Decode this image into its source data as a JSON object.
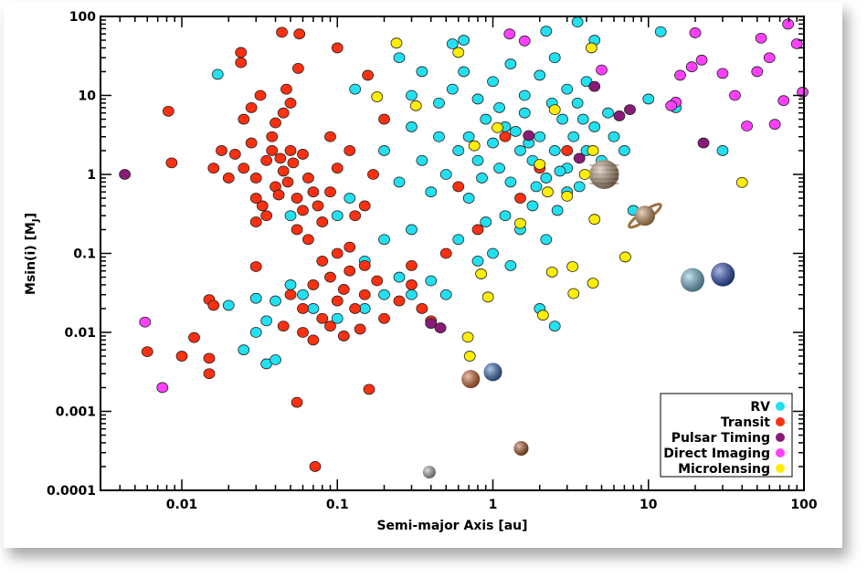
{
  "chart_data": {
    "type": "scatter",
    "title": "",
    "xlabel": "Semi-major Axis [au]",
    "ylabel": "Msin(i) [M",
    "ylabel_sub": "J",
    "ylabel_end": "]",
    "x_scale": "log",
    "y_scale": "log",
    "xlim": [
      0.003,
      100
    ],
    "ylim": [
      0.0001,
      100
    ],
    "x_ticks": [
      {
        "v": 0.01,
        "label": "0.01"
      },
      {
        "v": 0.1,
        "label": "0.1"
      },
      {
        "v": 1,
        "label": "1"
      },
      {
        "v": 10,
        "label": "10"
      },
      {
        "v": 100,
        "label": "100"
      }
    ],
    "y_ticks": [
      {
        "v": 0.0001,
        "label": "0.0001"
      },
      {
        "v": 0.001,
        "label": "0.001"
      },
      {
        "v": 0.01,
        "label": "0.01"
      },
      {
        "v": 0.1,
        "label": "0.1"
      },
      {
        "v": 1,
        "label": "1"
      },
      {
        "v": 10,
        "label": "10"
      },
      {
        "v": 100,
        "label": "100"
      }
    ],
    "grid": false,
    "legend_position": "bottom-right",
    "series": [
      {
        "name": "RV",
        "color": "#22e0f0",
        "points": [
          [
            0.5,
            1
          ],
          [
            0.6,
            2
          ],
          [
            0.7,
            3
          ],
          [
            0.8,
            1.5
          ],
          [
            0.9,
            5
          ],
          [
            1,
            2.5
          ],
          [
            1.1,
            1.2
          ],
          [
            1.2,
            4
          ],
          [
            1.3,
            0.8
          ],
          [
            1.5,
            2
          ],
          [
            1.6,
            6
          ],
          [
            1.8,
            1.5
          ],
          [
            2,
            3
          ],
          [
            2.2,
            0.9
          ],
          [
            2.5,
            2
          ],
          [
            2.8,
            5
          ],
          [
            3,
            1.2
          ],
          [
            3.3,
            3
          ],
          [
            3.6,
            0.7
          ],
          [
            4,
            2
          ],
          [
            4.5,
            4
          ],
          [
            5,
            1.5
          ],
          [
            5.5,
            6
          ],
          [
            6,
            3
          ],
          [
            7,
            2
          ],
          [
            0.4,
            0.6
          ],
          [
            0.35,
            1.5
          ],
          [
            0.3,
            4
          ],
          [
            0.25,
            0.8
          ],
          [
            0.2,
            2
          ],
          [
            0.45,
            8
          ],
          [
            0.55,
            12
          ],
          [
            0.65,
            20
          ],
          [
            0.8,
            9
          ],
          [
            1,
            15
          ],
          [
            1.3,
            25
          ],
          [
            1.6,
            10
          ],
          [
            2,
            18
          ],
          [
            2.5,
            30
          ],
          [
            3,
            12
          ],
          [
            3.5,
            8
          ],
          [
            4,
            15
          ],
          [
            4.5,
            50
          ],
          [
            2.2,
            65
          ],
          [
            3.5,
            85
          ],
          [
            0.55,
            45
          ],
          [
            0.65,
            50
          ],
          [
            1.2,
            0.3
          ],
          [
            1.5,
            0.2
          ],
          [
            1.8,
            0.4
          ],
          [
            2.2,
            0.15
          ],
          [
            2.6,
            0.35
          ],
          [
            3,
            0.6
          ],
          [
            0.7,
            0.5
          ],
          [
            0.9,
            0.25
          ],
          [
            0.6,
            0.15
          ],
          [
            1,
            0.1
          ],
          [
            0.8,
            0.08
          ],
          [
            1.3,
            0.07
          ],
          [
            2.5,
            0.012
          ],
          [
            2,
            0.02
          ],
          [
            0.3,
            0.2
          ],
          [
            0.2,
            0.15
          ],
          [
            0.15,
            0.08
          ],
          [
            0.25,
            0.05
          ],
          [
            0.3,
            0.03
          ],
          [
            0.4,
            0.045
          ],
          [
            0.5,
            0.03
          ],
          [
            0.2,
            0.03
          ],
          [
            0.15,
            0.02
          ],
          [
            0.1,
            0.015
          ],
          [
            0.07,
            0.02
          ],
          [
            0.06,
            0.03
          ],
          [
            0.05,
            0.04
          ],
          [
            0.04,
            0.025
          ],
          [
            0.035,
            0.014
          ],
          [
            0.03,
            0.01
          ],
          [
            0.025,
            0.006
          ],
          [
            0.035,
            0.004
          ],
          [
            0.04,
            0.0045
          ],
          [
            0.03,
            0.027
          ],
          [
            0.02,
            0.022
          ],
          [
            0.1,
            0.3
          ],
          [
            0.12,
            0.5
          ],
          [
            0.05,
            0.3
          ],
          [
            0.017,
            18.5
          ],
          [
            8,
            0.35
          ],
          [
            10,
            9
          ],
          [
            15,
            7
          ],
          [
            12,
            64
          ],
          [
            30,
            2
          ],
          [
            0.13,
            12
          ],
          [
            0.25,
            30
          ],
          [
            0.35,
            20
          ],
          [
            0.3,
            10
          ],
          [
            0.45,
            3
          ],
          [
            1.1,
            7
          ],
          [
            1.4,
            3.5
          ],
          [
            1.7,
            2.5
          ],
          [
            2.4,
            8
          ],
          [
            3.8,
            5
          ],
          [
            0.85,
            0.9
          ],
          [
            1.9,
            0.7
          ],
          [
            2.7,
            1.1
          ]
        ]
      },
      {
        "name": "Transit",
        "color": "#ff3010",
        "points": [
          [
            0.025,
            1.2
          ],
          [
            0.03,
            0.9
          ],
          [
            0.035,
            1.5
          ],
          [
            0.04,
            0.7
          ],
          [
            0.045,
            1.1
          ],
          [
            0.05,
            2
          ],
          [
            0.055,
            0.5
          ],
          [
            0.028,
            2.5
          ],
          [
            0.033,
            0.4
          ],
          [
            0.038,
            3
          ],
          [
            0.042,
            0.55
          ],
          [
            0.048,
            0.8
          ],
          [
            0.052,
            1.4
          ],
          [
            0.06,
            0.35
          ],
          [
            0.065,
            0.9
          ],
          [
            0.07,
            0.6
          ],
          [
            0.022,
            1.8
          ],
          [
            0.02,
            0.9
          ],
          [
            0.018,
            2
          ],
          [
            0.016,
            1.2
          ],
          [
            0.03,
            0.5
          ],
          [
            0.04,
            4.5
          ],
          [
            0.045,
            6
          ],
          [
            0.05,
            8
          ],
          [
            0.047,
            12
          ],
          [
            0.03,
            0.25
          ],
          [
            0.035,
            0.3
          ],
          [
            0.06,
            1.8
          ],
          [
            0.075,
            0.4
          ],
          [
            0.08,
            0.25
          ],
          [
            0.09,
            0.6
          ],
          [
            0.1,
            1.2
          ],
          [
            0.12,
            2
          ],
          [
            0.13,
            0.3
          ],
          [
            0.15,
            0.4
          ],
          [
            0.2,
            5
          ],
          [
            0.17,
            1
          ],
          [
            0.025,
            5
          ],
          [
            0.028,
            7
          ],
          [
            0.032,
            10
          ],
          [
            0.055,
            0.2
          ],
          [
            0.065,
            0.15
          ],
          [
            0.09,
            3
          ],
          [
            0.038,
            2
          ],
          [
            0.043,
            1.6
          ],
          [
            0.05,
            0.03
          ],
          [
            0.06,
            0.02
          ],
          [
            0.07,
            0.04
          ],
          [
            0.08,
            0.015
          ],
          [
            0.09,
            0.05
          ],
          [
            0.1,
            0.025
          ],
          [
            0.11,
            0.035
          ],
          [
            0.12,
            0.06
          ],
          [
            0.13,
            0.02
          ],
          [
            0.15,
            0.03
          ],
          [
            0.18,
            0.045
          ],
          [
            0.2,
            0.015
          ],
          [
            0.25,
            0.025
          ],
          [
            0.3,
            0.04
          ],
          [
            0.35,
            0.02
          ],
          [
            0.4,
            0.014
          ],
          [
            0.1,
            0.1
          ],
          [
            0.12,
            0.12
          ],
          [
            0.08,
            0.08
          ],
          [
            0.15,
            0.07
          ],
          [
            0.045,
            0.012
          ],
          [
            0.06,
            0.01
          ],
          [
            0.07,
            0.008
          ],
          [
            0.09,
            0.012
          ],
          [
            0.11,
            0.009
          ],
          [
            0.14,
            0.011
          ],
          [
            0.3,
            0.07
          ],
          [
            0.5,
            0.1
          ],
          [
            0.8,
            0.2
          ],
          [
            1.5,
            0.5
          ],
          [
            2,
            1.2
          ],
          [
            3,
            2
          ],
          [
            1.2,
            3
          ],
          [
            0.6,
            0.7
          ],
          [
            0.0082,
            6.3
          ],
          [
            0.0086,
            1.4
          ],
          [
            0.006,
            0.0057
          ],
          [
            0.01,
            0.005
          ],
          [
            0.012,
            0.0086
          ],
          [
            0.015,
            0.0047
          ],
          [
            0.015,
            0.003
          ],
          [
            0.015,
            0.026
          ],
          [
            0.016,
            0.022
          ],
          [
            0.024,
            35
          ],
          [
            0.024,
            26
          ],
          [
            0.044,
            63
          ],
          [
            0.057,
            60
          ],
          [
            0.1,
            40
          ],
          [
            0.055,
            0.0013
          ],
          [
            0.16,
            0.0019
          ],
          [
            0.072,
            0.0002
          ],
          [
            0.157,
            18
          ],
          [
            0.056,
            22
          ],
          [
            0.03,
            0.068
          ]
        ]
      },
      {
        "name": "Pulsar Timing",
        "color": "#8a1a78",
        "points": [
          [
            0.0043,
            1
          ],
          [
            0.46,
            0.0114
          ],
          [
            0.4,
            0.013
          ],
          [
            22.6,
            2.5
          ],
          [
            1.7,
            3.1
          ],
          [
            7.6,
            6.6
          ],
          [
            6.5,
            5.5
          ],
          [
            4.5,
            13
          ],
          [
            3.6,
            1.6
          ]
        ]
      },
      {
        "name": "Direct Imaging",
        "color": "#ff40ff",
        "points": [
          [
            0.0058,
            0.0135
          ],
          [
            0.0075,
            0.002
          ],
          [
            79,
            80
          ],
          [
            53,
            53
          ],
          [
            50,
            20
          ],
          [
            74,
            8.6
          ],
          [
            36,
            10
          ],
          [
            30,
            19
          ],
          [
            19,
            23
          ],
          [
            20,
            62
          ],
          [
            15,
            8.2
          ],
          [
            14,
            7.4
          ],
          [
            43,
            4.1
          ],
          [
            65,
            4.3
          ],
          [
            98,
            11
          ],
          [
            1.28,
            60
          ],
          [
            5,
            21
          ],
          [
            1.6,
            49
          ],
          [
            22,
            28
          ],
          [
            60,
            30
          ],
          [
            90,
            45
          ],
          [
            16,
            18
          ]
        ]
      },
      {
        "name": "Microlensing",
        "color": "#ffee00",
        "points": [
          [
            0.24,
            46
          ],
          [
            0.18,
            9.6
          ],
          [
            0.32,
            7.4
          ],
          [
            40,
            0.79
          ],
          [
            7.1,
            0.09
          ],
          [
            3.25,
            0.068
          ],
          [
            2.4,
            0.058
          ],
          [
            3.3,
            0.031
          ],
          [
            4.4,
            0.042
          ],
          [
            2.1,
            0.0165
          ],
          [
            0.69,
            0.0087
          ],
          [
            0.71,
            0.005
          ],
          [
            0.84,
            0.055
          ],
          [
            0.93,
            0.028
          ],
          [
            1.5,
            0.24
          ],
          [
            0.76,
            2.3
          ],
          [
            1.07,
            3.9
          ],
          [
            2,
            1.34
          ],
          [
            3.9,
            1
          ],
          [
            3,
            0.53
          ],
          [
            4.4,
            2
          ],
          [
            2.5,
            6.6
          ],
          [
            2.25,
            0.6
          ],
          [
            4.5,
            0.27
          ],
          [
            0.6,
            35
          ],
          [
            4.3,
            40
          ]
        ]
      }
    ],
    "solar_system": [
      {
        "name": "Mercury",
        "a": 0.39,
        "m": 0.00017,
        "color": "#b0b0b0"
      },
      {
        "name": "Venus",
        "a": 0.72,
        "m": 0.00256,
        "color": "#d86a30"
      },
      {
        "name": "Earth",
        "a": 1.0,
        "m": 0.00315,
        "color": "#3a70c0"
      },
      {
        "name": "Mars",
        "a": 1.52,
        "m": 0.00034,
        "color": "#b05a2a"
      },
      {
        "name": "Jupiter",
        "a": 5.2,
        "m": 1.0,
        "color": "#c8a88a"
      },
      {
        "name": "Saturn",
        "a": 9.5,
        "m": 0.3,
        "color": "#d09a60"
      },
      {
        "name": "Uranus",
        "a": 19.2,
        "m": 0.046,
        "color": "#7ac0e0"
      },
      {
        "name": "Neptune",
        "a": 30.1,
        "m": 0.054,
        "color": "#2a50c0"
      }
    ]
  }
}
